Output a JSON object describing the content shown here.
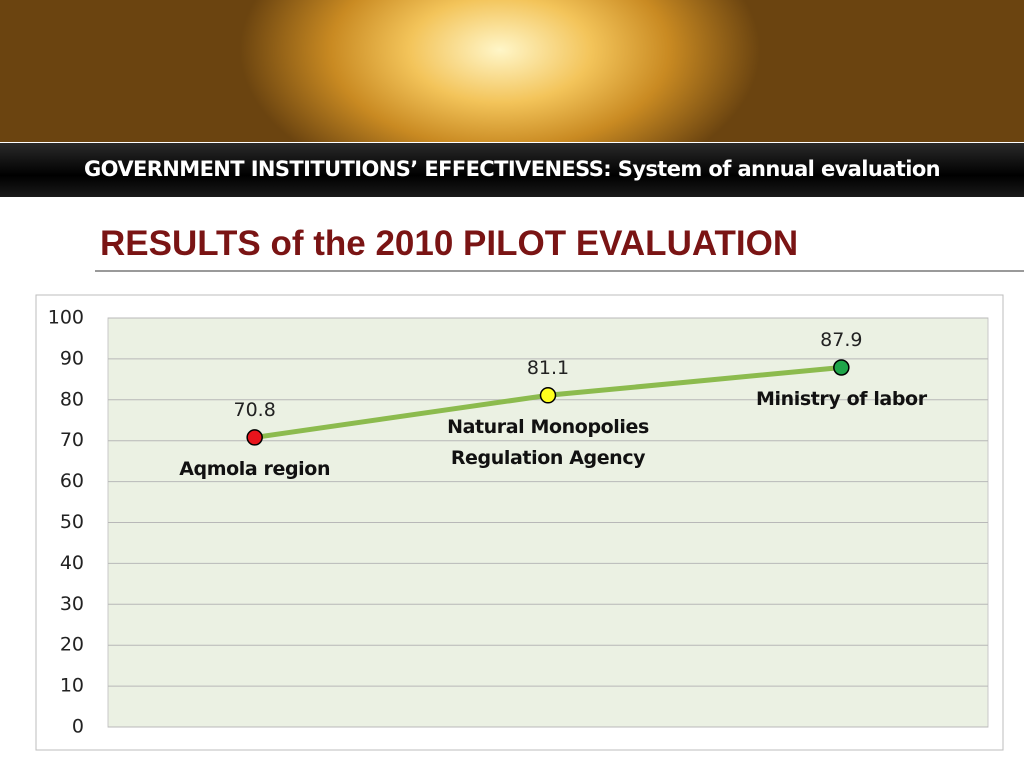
{
  "header": {
    "title": "GOVERNMENT INSTITUTIONS’ EFFECTIVENESS: System of annual evaluation",
    "subtitle": "RESULTS of the 2010 PILOT EVALUATION"
  },
  "chart_data": {
    "type": "line",
    "categories": [
      "Aqmola region",
      "Natural Monopolies Regulation Agency",
      "Ministry of labor"
    ],
    "values": [
      70.8,
      81.1,
      87.9
    ],
    "color": "#8cbb4e",
    "point_colors": [
      "#e8141c",
      "#ffff1e",
      "#1fa64a"
    ],
    "ylim": [
      0,
      100
    ],
    "yticks": [
      0,
      10,
      20,
      30,
      40,
      50,
      60,
      70,
      80,
      90,
      100
    ],
    "grid": true
  }
}
